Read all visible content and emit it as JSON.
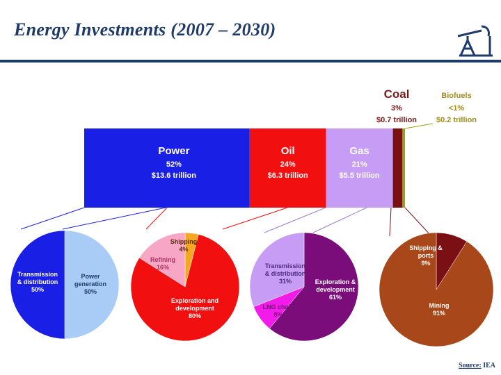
{
  "page": {
    "title": "Energy Investments (2007 – 2030)",
    "source_label": "Source:",
    "source_value": "IEA"
  },
  "colors": {
    "power": "#1a1fe6",
    "oil": "#f20f0f",
    "gas": "#c79cf5",
    "coal": "#7a0f14",
    "biofuels": "#9aa01e",
    "title": "#1d3a6b",
    "coal_label": "#7a1a1a",
    "biofuels_label": "#a08f1c"
  },
  "chart_data": {
    "type": "bar",
    "title": "Energy Investments (2007 – 2030)",
    "stacked_bar": {
      "segments": [
        {
          "key": "power",
          "name": "Power",
          "share": 52,
          "pct_label": "52%",
          "value_label": "$13.6 trillion"
        },
        {
          "key": "oil",
          "name": "Oil",
          "share": 24,
          "pct_label": "24%",
          "value_label": "$6.3 trillion"
        },
        {
          "key": "gas",
          "name": "Gas",
          "share": 21,
          "pct_label": "21%",
          "value_label": "$5.5 trillion"
        },
        {
          "key": "coal",
          "name": "Coal",
          "share": 3,
          "pct_label": "3%",
          "value_label": "$0.7 trillion"
        },
        {
          "key": "biofuels",
          "name": "Biofuels",
          "share": 0.8,
          "pct_label": "<1%",
          "value_label": "$0.2 trillion"
        }
      ]
    },
    "pies": [
      {
        "key": "power",
        "slices": [
          {
            "label": "Transmission & distribution",
            "pct": "50%",
            "value": 50,
            "color": "#1a1fe6"
          },
          {
            "label": "Power generation",
            "pct": "50%",
            "value": 50,
            "color": "#a9ccf7"
          }
        ]
      },
      {
        "key": "oil",
        "slices": [
          {
            "label": "Exploration and development",
            "pct": "80%",
            "value": 80,
            "color": "#f20f0f"
          },
          {
            "label": "Refining",
            "pct": "16%",
            "value": 16,
            "color": "#f7a6c6"
          },
          {
            "label": "Shipping",
            "pct": "4%",
            "value": 4,
            "color": "#f5a623"
          }
        ]
      },
      {
        "key": "gas",
        "slices": [
          {
            "label": "Exploration & development",
            "pct": "61%",
            "value": 61,
            "color": "#7a0d7a"
          },
          {
            "label": "LNG chain",
            "pct": "8%",
            "value": 8,
            "color": "#f21bea"
          },
          {
            "label": "Transmission & distribution",
            "pct": "31%",
            "value": 31,
            "color": "#c79cf5"
          }
        ]
      },
      {
        "key": "coal",
        "slices": [
          {
            "label": "Shipping & ports",
            "pct": "9%",
            "value": 9,
            "color": "#7a0f14"
          },
          {
            "label": "Mining",
            "pct": "91%",
            "value": 91,
            "color": "#a8471a"
          }
        ]
      }
    ]
  }
}
